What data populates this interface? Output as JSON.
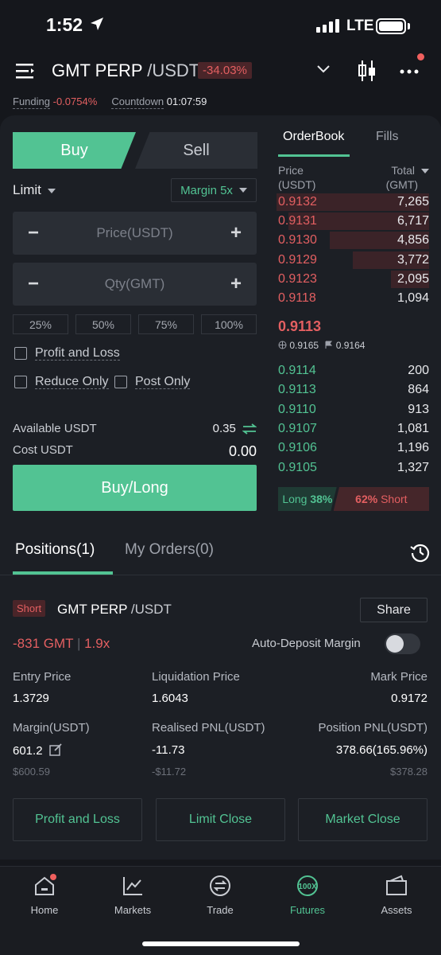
{
  "status_bar": {
    "time": "1:52",
    "network": "LTE"
  },
  "header": {
    "pair_base": "GMT PERP",
    "pair_quote": "/USDT",
    "change": "-34.03%",
    "funding_label": "Funding",
    "funding_value": "-0.0754%",
    "countdown_label": "Countdown",
    "countdown_value": "01:07:59"
  },
  "order_form": {
    "buy_tab": "Buy",
    "sell_tab": "Sell",
    "order_type": "Limit",
    "margin": "Margin 5x",
    "price_placeholder": "Price(USDT)",
    "qty_placeholder": "Qty(GMT)",
    "percentages": [
      "25%",
      "50%",
      "75%",
      "100%"
    ],
    "profit_loss": "Profit and Loss",
    "reduce_only": "Reduce Only",
    "post_only": "Post Only",
    "available_label": "Available USDT",
    "available_value": "0.35",
    "cost_label": "Cost USDT",
    "cost_value": "0.00",
    "submit": "Buy/Long",
    "colors": {
      "buy": "#52c393",
      "sell": "#e35f61"
    }
  },
  "orderbook": {
    "tabs": [
      "OrderBook",
      "Fills"
    ],
    "price_header": [
      "Price",
      "(USDT)"
    ],
    "total_header": [
      "Total",
      "(GMT)"
    ],
    "asks": [
      {
        "price": "0.9132",
        "total": "7,265",
        "depth": 1.0
      },
      {
        "price": "0.9131",
        "total": "6,717",
        "depth": 0.92
      },
      {
        "price": "0.9130",
        "total": "4,856",
        "depth": 0.65
      },
      {
        "price": "0.9129",
        "total": "3,772",
        "depth": 0.5
      },
      {
        "price": "0.9123",
        "total": "2,095",
        "depth": 0.25
      },
      {
        "price": "0.9118",
        "total": "1,094",
        "depth": 0.0
      }
    ],
    "last_price": "0.9113",
    "index_price": "0.9165",
    "mark_price": "0.9164",
    "bids": [
      {
        "price": "0.9114",
        "total": "200"
      },
      {
        "price": "0.9113",
        "total": "864"
      },
      {
        "price": "0.9110",
        "total": "913"
      },
      {
        "price": "0.9107",
        "total": "1,081"
      },
      {
        "price": "0.9106",
        "total": "1,196"
      },
      {
        "price": "0.9105",
        "total": "1,327"
      }
    ],
    "long_label": "Long",
    "long_pct": "38%",
    "short_pct": "62%",
    "short_label": "Short"
  },
  "positions": {
    "tab_positions": "Positions(1)",
    "tab_orders": "My Orders(0)",
    "side": "Short",
    "pair_base": "GMT PERP",
    "pair_quote": "/USDT",
    "share": "Share",
    "size": "-831 GMT",
    "leverage": "1.9x",
    "auto_deposit": "Auto-Deposit Margin",
    "entry_label": "Entry Price",
    "entry_value": "1.3729",
    "liq_label": "Liquidation Price",
    "liq_value": "1.6043",
    "mark_label": "Mark Price",
    "mark_value": "0.9172",
    "margin_label": "Margin(USDT)",
    "margin_value": "601.2",
    "margin_usd": "$600.59",
    "rpnl_label": "Realised PNL(USDT)",
    "rpnl_value": "-11.73",
    "rpnl_usd": "-$11.72",
    "ppnl_label": "Position PNL(USDT)",
    "ppnl_value": "378.66(165.96%)",
    "ppnl_usd": "$378.28",
    "btn_pl": "Profit and Loss",
    "btn_limit": "Limit Close",
    "btn_market": "Market Close"
  },
  "nav": {
    "home": "Home",
    "markets": "Markets",
    "trade": "Trade",
    "futures": "Futures",
    "futures_icon_text": "100X",
    "assets": "Assets"
  }
}
